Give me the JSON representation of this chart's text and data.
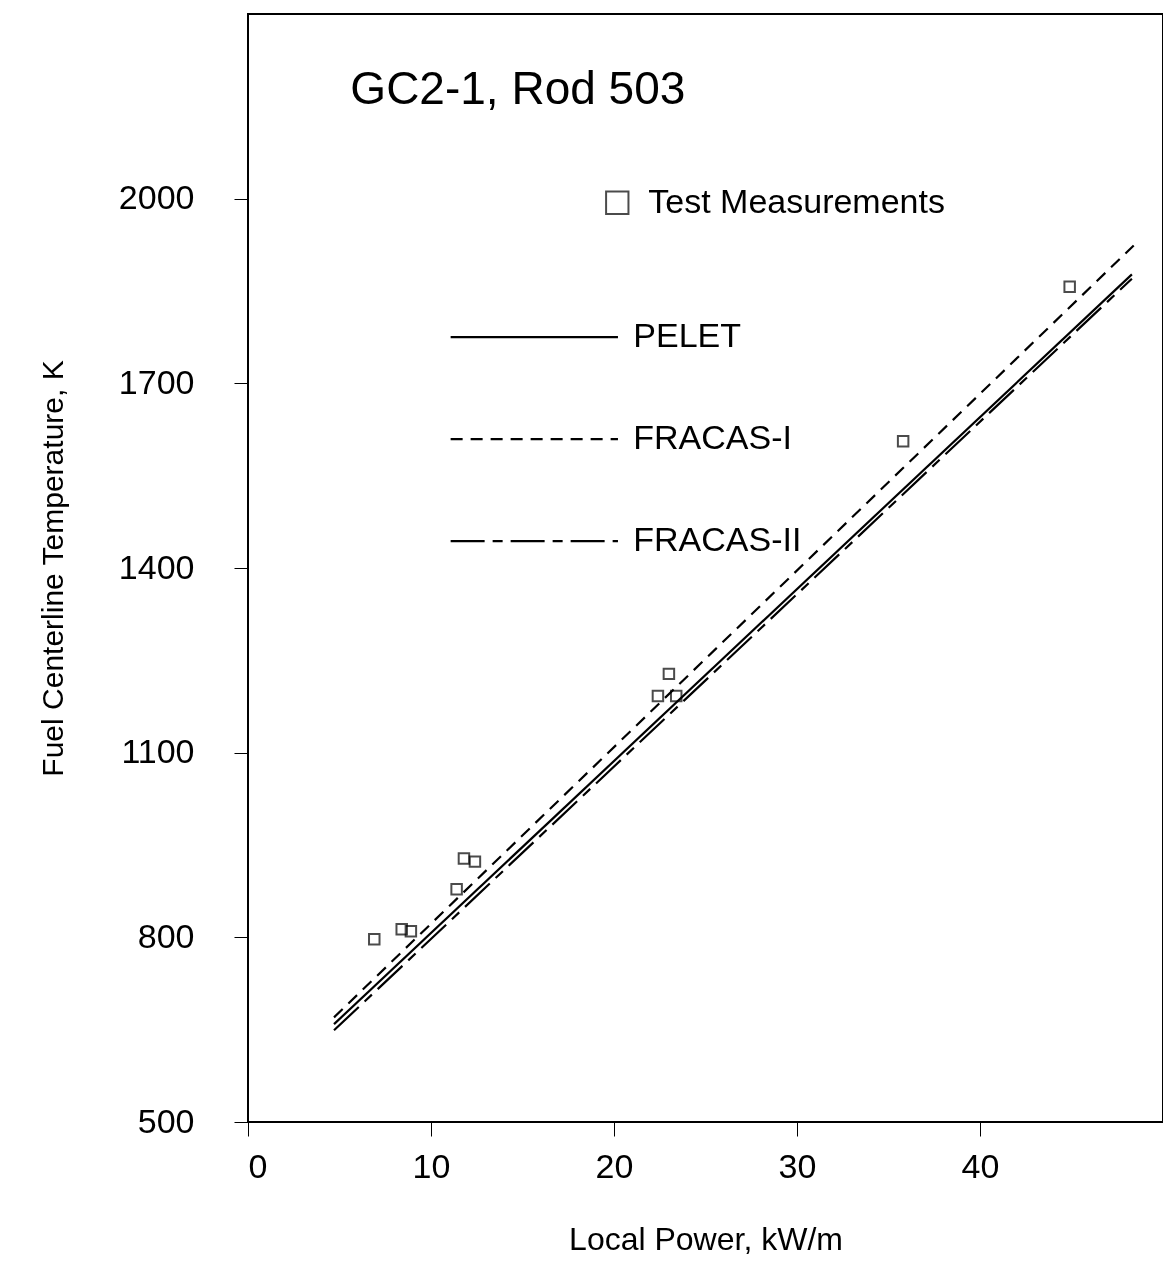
{
  "chart_data": {
    "type": "scatter",
    "title": "GC2-1, Rod 503",
    "xlabel": "Local Power, kW/m",
    "ylabel": "Fuel Centerline Temperature, K",
    "xlim": [
      0,
      50
    ],
    "ylim": [
      500,
      2300
    ],
    "xticks": [
      0,
      10,
      20,
      30,
      40
    ],
    "yticks": [
      500,
      800,
      {
        "value": 1100,
        "label": "1100"
      },
      {
        "value": 1400,
        "label": "1400"
      },
      {
        "value": 1700,
        "label": "1700"
      },
      {
        "value": 2000,
        "label": "2000"
      }
    ],
    "grid": false,
    "legend": "top right",
    "series": [
      {
        "name": "Test Measurements",
        "marker": "square",
        "color": "#000000",
        "x": [
          6.9,
          8.4,
          8.9,
          11.4,
          11.8,
          12.4,
          22.4,
          23.0,
          23.4,
          35.8,
          44.9
        ],
        "values": [
          797,
          813,
          810,
          878,
          928,
          923,
          1192,
          1228,
          1192,
          1606,
          1857
        ]
      },
      {
        "name": "PELET",
        "type": "line",
        "line_style": "solid",
        "color": "#000000",
        "x": [
          4.7,
          48.3
        ],
        "values": [
          659,
          1877
        ]
      },
      {
        "name": "FRACAS-I",
        "type": "line",
        "line_style": "dashed",
        "color": "#000000",
        "x": [
          4.7,
          48.4
        ],
        "values": [
          670,
          1924
        ]
      },
      {
        "name": "FRACAS-II",
        "type": "line",
        "line_style": "dashed",
        "color": "#000000",
        "x": [
          4.7,
          48.3
        ],
        "values": [
          649,
          1870
        ]
      }
    ]
  }
}
